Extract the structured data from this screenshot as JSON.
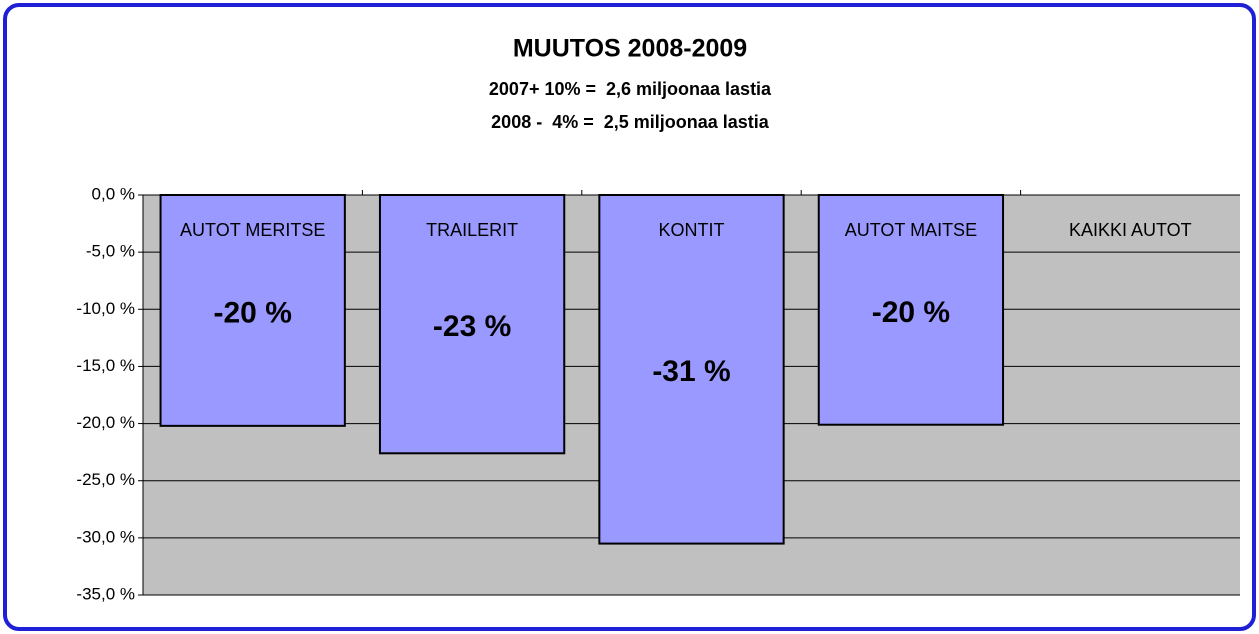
{
  "chart_data": {
    "type": "bar",
    "title": "MUUTOS 2008-2009",
    "subtitle": [
      "2007+ 10% =  2,6 miljoonaa lastia",
      "2008 -  4% =  2,5 miljoonaa lastia"
    ],
    "categories": [
      "AUTOT MERITSE",
      "TRAILERIT",
      "KONTIT",
      "AUTOT MAITSE",
      "KAIKKI AUTOT"
    ],
    "values": [
      -20.2,
      -22.6,
      -30.5,
      -20.1,
      null
    ],
    "value_labels": [
      "-20 %",
      "-23 %",
      "-31 %",
      "-20 %",
      null
    ],
    "color": "#9999ff",
    "ylim": [
      -35,
      0
    ],
    "yticks": [
      {
        "value": 0,
        "label": "0,0 %"
      },
      {
        "value": -5,
        "label": "-5,0 %"
      },
      {
        "value": -10,
        "label": "-10,0 %"
      },
      {
        "value": -15,
        "label": "-15,0 %"
      },
      {
        "value": -20,
        "label": "-20,0 %"
      },
      {
        "value": -25,
        "label": "-25,0 %"
      },
      {
        "value": -30,
        "label": "-30,0 %"
      },
      {
        "value": -35,
        "label": "-35,0 %"
      }
    ],
    "grid": true
  }
}
